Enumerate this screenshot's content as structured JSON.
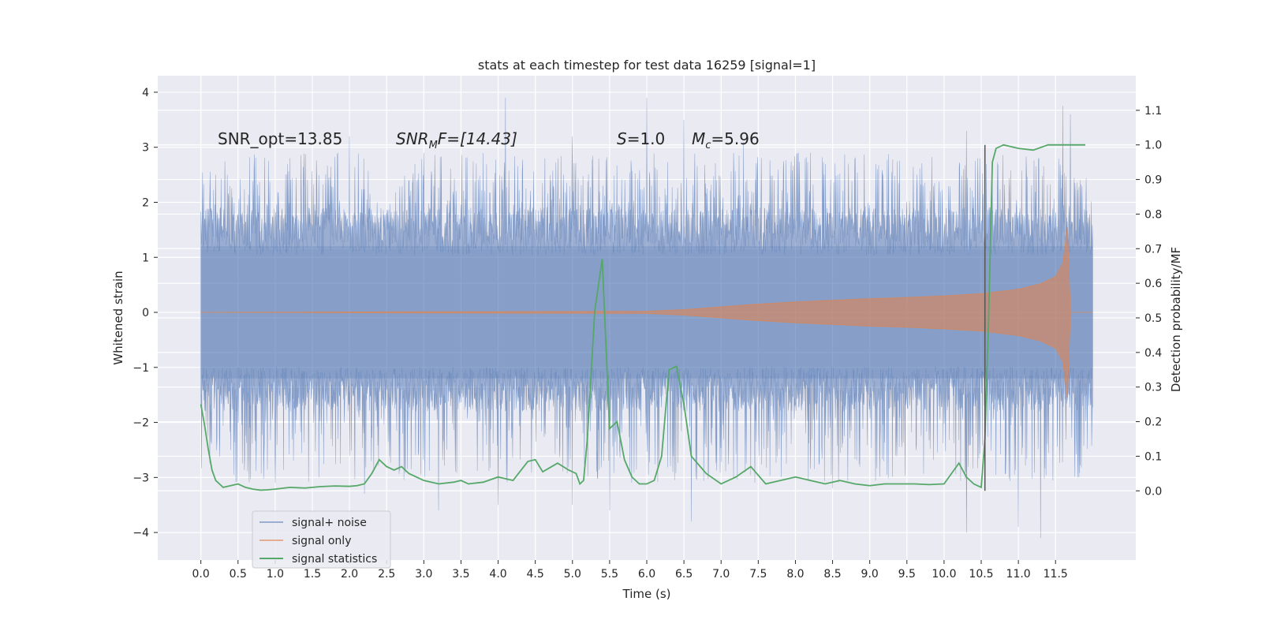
{
  "chart_data": {
    "type": "line",
    "title": "stats at each timestep for test data 16259 [signal=1]",
    "xlabel": "Time (s)",
    "ylabel_left": "Whitened strain",
    "ylabel_right": "Detection probability/MF",
    "xlim": [
      -0.58,
      12.58
    ],
    "ylim_left": [
      -4.5,
      4.3
    ],
    "ylim_right": [
      -0.2,
      1.2
    ],
    "x_ticks": [
      0.0,
      0.5,
      1.0,
      1.5,
      2.0,
      2.5,
      3.0,
      3.5,
      4.0,
      4.5,
      5.0,
      5.5,
      6.0,
      6.5,
      7.0,
      7.5,
      8.0,
      8.5,
      9.0,
      9.5,
      10.0,
      10.5,
      11.0,
      11.5
    ],
    "x_tick_labels": [
      "0.0",
      "0.5",
      "1.0",
      "1.5",
      "2.0",
      "2.5",
      "3.0",
      "3.5",
      "4.0",
      "4.5",
      "5.0",
      "5.5",
      "6.0",
      "6.5",
      "7.0",
      "7.5",
      "8.0",
      "8.5",
      "9.0",
      "9.5",
      "10.0",
      "10.5",
      "11.0",
      "11.5"
    ],
    "y_ticks_left": [
      4,
      3,
      2,
      1,
      0,
      -1,
      -2,
      -3,
      -4
    ],
    "y_tick_labels_left": [
      "4",
      "3",
      "2",
      "1",
      "0",
      "−1",
      "−2",
      "−3",
      "−4"
    ],
    "y_ticks_right": [
      0.0,
      0.1,
      0.2,
      0.3,
      0.4,
      0.5,
      0.6,
      0.7,
      0.8,
      0.9,
      1.0,
      1.1
    ],
    "y_tick_labels_right": [
      "0.0",
      "0.1",
      "0.2",
      "0.3",
      "0.4",
      "0.5",
      "0.6",
      "0.7",
      "0.8",
      "0.9",
      "1.0",
      "1.1"
    ],
    "grid": true,
    "legend_position": "lower-left",
    "annotations": {
      "snr_opt": "SNR_opt=13.85",
      "snr_mf_prefix": "SNR",
      "snr_mf_sub": "M",
      "snr_mf_suffix": "F=[14.43]",
      "s_var": "S",
      "s_value": "=1.0",
      "mc_var": "M",
      "mc_sub": "c",
      "mc_value": "=5.96"
    },
    "series": [
      {
        "name": "signal+ noise",
        "color": "#4c72b0",
        "axis": "left",
        "x_range": [
          0.0,
          12.0
        ],
        "typical_envelope": [
          -1.8,
          1.9
        ],
        "peaks_high": [
          [
            0.2,
            2.5
          ],
          [
            1.2,
            2.8
          ],
          [
            2.0,
            3.2
          ],
          [
            3.0,
            2.9
          ],
          [
            4.1,
            3.9
          ],
          [
            5.0,
            3.2
          ],
          [
            6.0,
            3.9
          ],
          [
            6.5,
            3.5
          ],
          [
            7.3,
            3.1
          ],
          [
            8.2,
            2.9
          ],
          [
            9.1,
            2.6
          ],
          [
            10.3,
            3.3
          ],
          [
            11.6,
            3.75
          ],
          [
            11.7,
            3.6
          ]
        ],
        "peaks_low": [
          [
            0.4,
            -2.5
          ],
          [
            1.0,
            -3.1
          ],
          [
            2.2,
            -3.3
          ],
          [
            3.2,
            -3.6
          ],
          [
            4.0,
            -3.5
          ],
          [
            5.0,
            -3.5
          ],
          [
            5.5,
            -3.6
          ],
          [
            6.6,
            -3.8
          ],
          [
            8.5,
            -3.2
          ],
          [
            10.3,
            -4.0
          ],
          [
            11.0,
            -3.9
          ],
          [
            11.3,
            -4.1
          ],
          [
            11.8,
            -3.0
          ]
        ]
      },
      {
        "name": "signal only",
        "color": "#dd8452",
        "axis": "left",
        "x": [
          0.0,
          6.0,
          6.5,
          7.0,
          7.5,
          8.0,
          8.5,
          9.0,
          9.5,
          10.0,
          10.5,
          11.0,
          11.3,
          11.5,
          11.6,
          11.66,
          11.7,
          12.0
        ],
        "amplitude": [
          0.0,
          0.02,
          0.05,
          0.1,
          0.15,
          0.19,
          0.22,
          0.25,
          0.27,
          0.3,
          0.34,
          0.42,
          0.52,
          0.65,
          0.9,
          1.55,
          0.0,
          0.0
        ]
      },
      {
        "name": "signal statistics",
        "color": "#55a868",
        "axis": "right",
        "x": [
          0.0,
          0.05,
          0.1,
          0.15,
          0.2,
          0.3,
          0.4,
          0.5,
          0.6,
          0.7,
          0.8,
          0.9,
          1.0,
          1.2,
          1.4,
          1.6,
          1.8,
          2.0,
          2.1,
          2.2,
          2.3,
          2.4,
          2.5,
          2.6,
          2.7,
          2.8,
          3.0,
          3.2,
          3.4,
          3.5,
          3.6,
          3.8,
          4.0,
          4.2,
          4.4,
          4.5,
          4.6,
          4.8,
          4.95,
          5.05,
          5.1,
          5.15,
          5.2,
          5.3,
          5.4,
          5.5,
          5.6,
          5.7,
          5.8,
          5.9,
          6.0,
          6.1,
          6.2,
          6.3,
          6.4,
          6.5,
          6.6,
          6.8,
          7.0,
          7.2,
          7.4,
          7.6,
          7.8,
          8.0,
          8.2,
          8.4,
          8.6,
          8.8,
          9.0,
          9.2,
          9.4,
          9.6,
          9.8,
          10.0,
          10.1,
          10.2,
          10.3,
          10.4,
          10.5,
          10.55,
          10.6,
          10.65,
          10.7,
          10.8,
          10.9,
          11.0,
          11.2,
          11.4,
          11.6,
          11.8,
          11.9
        ],
        "values": [
          0.25,
          0.19,
          0.12,
          0.06,
          0.03,
          0.01,
          0.015,
          0.02,
          0.01,
          0.005,
          0.002,
          0.003,
          0.005,
          0.01,
          0.008,
          0.012,
          0.014,
          0.013,
          0.015,
          0.02,
          0.05,
          0.09,
          0.07,
          0.06,
          0.07,
          0.05,
          0.03,
          0.02,
          0.025,
          0.03,
          0.02,
          0.025,
          0.04,
          0.03,
          0.085,
          0.09,
          0.055,
          0.08,
          0.06,
          0.05,
          0.02,
          0.03,
          0.15,
          0.52,
          0.67,
          0.18,
          0.2,
          0.09,
          0.04,
          0.02,
          0.02,
          0.03,
          0.1,
          0.35,
          0.36,
          0.25,
          0.1,
          0.05,
          0.02,
          0.04,
          0.07,
          0.02,
          0.03,
          0.04,
          0.03,
          0.02,
          0.03,
          0.02,
          0.015,
          0.02,
          0.02,
          0.02,
          0.018,
          0.02,
          0.05,
          0.08,
          0.04,
          0.02,
          0.01,
          0.15,
          0.5,
          0.95,
          0.99,
          1.0,
          0.995,
          0.99,
          0.985,
          1.0,
          1.0,
          1.0,
          1.0
        ]
      }
    ],
    "vertical_line": {
      "x": 10.55,
      "color": "#555555"
    }
  }
}
